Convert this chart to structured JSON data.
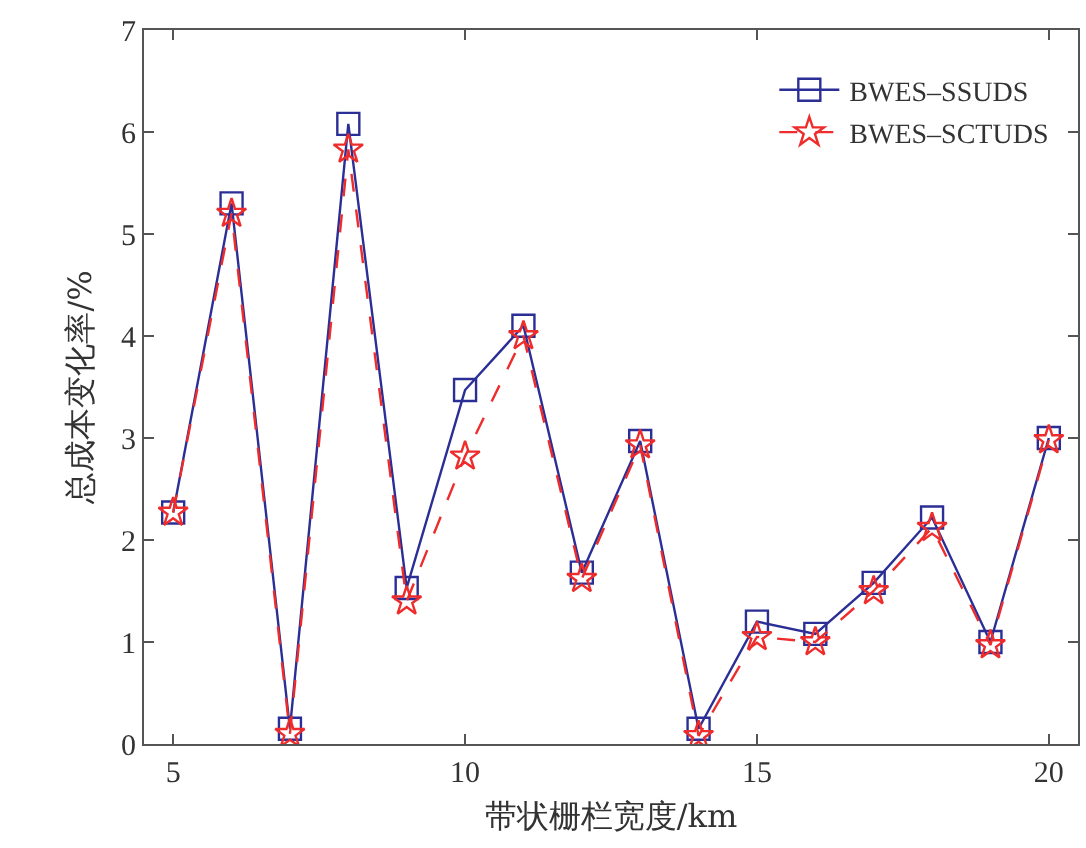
{
  "chart_data": {
    "type": "line",
    "xlabel": "带状栅栏宽度/km",
    "ylabel": "总成本变化率/%",
    "x": [
      5,
      6,
      7,
      8,
      9,
      10,
      11,
      12,
      13,
      14,
      15,
      16,
      17,
      18,
      19,
      20
    ],
    "series": [
      {
        "name": "BWES–SSUDS",
        "color": "#2b2f95",
        "marker": "square",
        "line_style": "solid",
        "values": [
          2.27,
          5.3,
          0.15,
          6.08,
          1.53,
          3.47,
          4.1,
          1.68,
          2.97,
          0.15,
          1.2,
          1.08,
          1.58,
          2.22,
          1.0,
          3.0
        ]
      },
      {
        "name": "BWES–SCTUDS",
        "color": "#ee2c2c",
        "marker": "star",
        "line_style": "dashed",
        "values": [
          2.27,
          5.2,
          0.1,
          5.83,
          1.4,
          2.82,
          4.0,
          1.62,
          2.93,
          0.08,
          1.05,
          1.0,
          1.5,
          2.12,
          0.97,
          2.98
        ]
      }
    ],
    "xlim": [
      4.5,
      20.5
    ],
    "xticks": [
      5,
      10,
      15,
      20
    ],
    "ylim": [
      0,
      7
    ],
    "yticks": [
      0,
      1,
      2,
      3,
      4,
      5,
      6,
      7
    ],
    "grid": false,
    "legend": "top right"
  }
}
